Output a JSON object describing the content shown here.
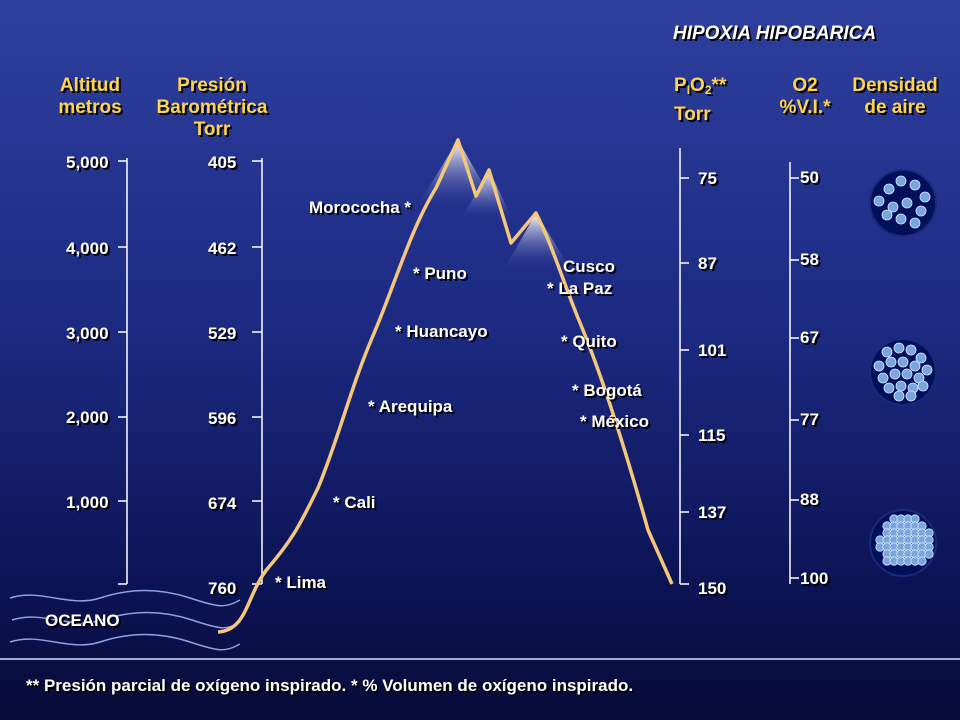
{
  "title": "HIPOXIA HIPOBARICA",
  "columns": {
    "altitud": {
      "line1": "Altitud",
      "line2": "metros"
    },
    "presion": {
      "line1": "Presión",
      "line2": "Barométrica",
      "line3": "Torr"
    },
    "pio2": {
      "main": "P",
      "sub1": "I",
      "mid": "O",
      "sub2": "2",
      "stars": "**",
      "unit": "Torr"
    },
    "o2": {
      "line1": "O2",
      "line2": "%V.I.*"
    },
    "densidad": {
      "line1": "Densidad",
      "line2": "de aire"
    }
  },
  "altitude_ticks": [
    "5,000",
    "4,000",
    "3,000",
    "2,000",
    "1,000"
  ],
  "pressure_ticks": [
    "405",
    "462",
    "529",
    "596",
    "674",
    "760"
  ],
  "pio2_ticks": [
    "75",
    "87",
    "101",
    "115",
    "137",
    "150"
  ],
  "o2_ticks": [
    "50",
    "58",
    "67",
    "77",
    "88",
    "100"
  ],
  "sites": {
    "morococha": "Morococha  *",
    "puno": "* Puno",
    "huancayo": "* Huancayo",
    "arequipa": "* Arequipa",
    "cali": "* Cali",
    "lima": "* Lima",
    "cusco": "Cusco",
    "lapaz": "*  La Paz",
    "quito": "*  Quito",
    "bogota": "*  Bogotá",
    "mexico": "*  México"
  },
  "ocean_label": "OCEANO",
  "footnote": "** Presión parcial de oxígeno inspirado. * % Volumen de oxígeno inspirado.",
  "colors": {
    "background_top": "#2e3f9e",
    "background_bottom": "#070b38",
    "header": "#ffd34a",
    "mountain_line": "#f5c77a",
    "molecule": "#7aa6e0"
  }
}
